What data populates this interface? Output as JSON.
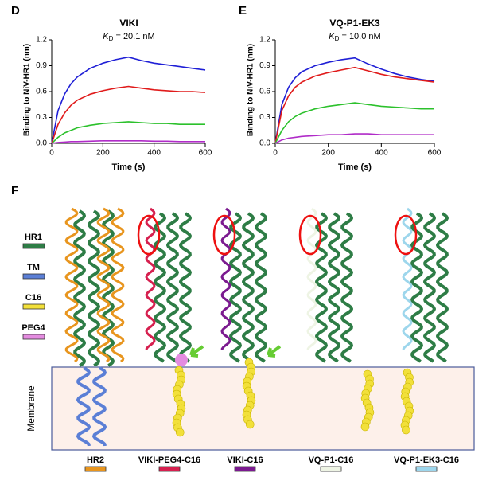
{
  "panel_labels": [
    "D",
    "E",
    "F"
  ],
  "chart_data": [
    {
      "type": "line",
      "title": "VIKI",
      "subtitle": {
        "italic": "K",
        "sub": "D",
        "rest": " = 20.1 nM"
      },
      "x_label": "Time (s)",
      "y_label": "Binding to NiV-HR1 (nm)",
      "x": [
        0,
        25,
        50,
        75,
        100,
        150,
        200,
        250,
        300,
        350,
        400,
        450,
        500,
        550,
        600
      ],
      "series": [
        {
          "color": "#1f1fd6",
          "values": [
            0,
            0.38,
            0.57,
            0.69,
            0.77,
            0.87,
            0.93,
            0.97,
            1.0,
            0.96,
            0.93,
            0.91,
            0.89,
            0.87,
            0.85
          ]
        },
        {
          "color": "#e01b1b",
          "values": [
            0,
            0.22,
            0.35,
            0.44,
            0.5,
            0.57,
            0.61,
            0.64,
            0.66,
            0.64,
            0.62,
            0.61,
            0.6,
            0.6,
            0.59
          ]
        },
        {
          "color": "#2cc12c",
          "values": [
            0,
            0.07,
            0.12,
            0.15,
            0.18,
            0.21,
            0.23,
            0.24,
            0.25,
            0.24,
            0.23,
            0.23,
            0.22,
            0.22,
            0.22
          ]
        },
        {
          "color": "#b02cc8",
          "values": [
            0,
            0.01,
            0.015,
            0.02,
            0.02,
            0.025,
            0.03,
            0.03,
            0.03,
            0.03,
            0.025,
            0.025,
            0.02,
            0.02,
            0.02
          ]
        }
      ],
      "xlim": [
        0,
        600
      ],
      "xticks": [
        0,
        200,
        400,
        600
      ],
      "ylim": [
        0,
        1.2
      ],
      "yticks": [
        {
          "value": 0,
          "label": "0.0"
        },
        0.3,
        0.6,
        0.9,
        1.2
      ]
    },
    {
      "type": "line",
      "title": "VQ-P1-EK3",
      "subtitle": {
        "italic": "K",
        "sub": "D",
        "rest": " = 10.0 nM"
      },
      "x_label": "Time (s)",
      "y_label": "Binding to NiV-HR1 (nm)",
      "x": [
        0,
        25,
        50,
        75,
        100,
        150,
        200,
        250,
        300,
        350,
        400,
        450,
        500,
        550,
        600
      ],
      "series": [
        {
          "color": "#1f1fd6",
          "values": [
            0,
            0.45,
            0.65,
            0.76,
            0.83,
            0.9,
            0.94,
            0.97,
            0.99,
            0.92,
            0.86,
            0.81,
            0.77,
            0.74,
            0.72
          ]
        },
        {
          "color": "#e01b1b",
          "values": [
            0,
            0.38,
            0.55,
            0.65,
            0.71,
            0.78,
            0.82,
            0.85,
            0.88,
            0.84,
            0.8,
            0.77,
            0.75,
            0.73,
            0.71
          ]
        },
        {
          "color": "#2cc12c",
          "values": [
            0,
            0.15,
            0.25,
            0.31,
            0.35,
            0.4,
            0.43,
            0.45,
            0.47,
            0.45,
            0.43,
            0.42,
            0.41,
            0.4,
            0.4
          ]
        },
        {
          "color": "#b02cc8",
          "values": [
            0,
            0.04,
            0.06,
            0.07,
            0.08,
            0.09,
            0.1,
            0.1,
            0.11,
            0.11,
            0.1,
            0.1,
            0.1,
            0.1,
            0.1
          ]
        }
      ],
      "xlim": [
        0,
        600
      ],
      "xticks": [
        0,
        200,
        400,
        600
      ],
      "ylim": [
        0,
        1.2
      ],
      "yticks": [
        {
          "value": 0,
          "label": "0.0"
        },
        0.3,
        0.6,
        0.9,
        1.2
      ]
    }
  ],
  "figure_f": {
    "legend": [
      {
        "label": "HR1",
        "color": "#2e7d46"
      },
      {
        "label": "TM",
        "color": "#5b7fd6"
      },
      {
        "label": "C16",
        "color": "#f2e03a"
      },
      {
        "label": "PEG4",
        "color": "#e48ce0"
      }
    ],
    "membrane_label": "Membrane",
    "constructs": [
      {
        "label": "HR2",
        "color": "#e8951e"
      },
      {
        "label": "VIKI-PEG4-C16",
        "color": "#d6204f"
      },
      {
        "label": "VIKI-C16",
        "color": "#7b1a8f"
      },
      {
        "label": "VQ-P1-C16",
        "color": "#eef4e4"
      },
      {
        "label": "VQ-P1-EK3-C16",
        "color": "#9dd6ec"
      }
    ]
  }
}
